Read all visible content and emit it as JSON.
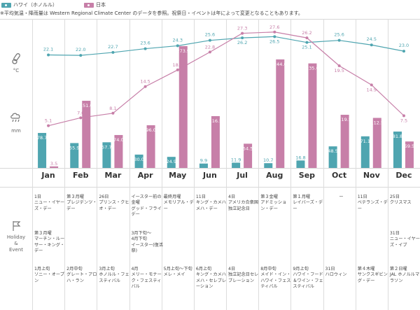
{
  "legend": {
    "hawaii": "ハワイ（ホノルル）",
    "japan": "日本"
  },
  "note": "※平均気温・降雨量は Western Regional Climate Center のデータを参照。祝祭日・イベントは年によって変更となることもあります。",
  "row_labels": {
    "temp_unit": "°C",
    "rain_unit": "mm",
    "holiday": "Holiday",
    "and": "&",
    "event": "Event"
  },
  "colors": {
    "hawaii": "#4fa5b0",
    "japan": "#c77fa8",
    "grid": "#dcdcdc"
  },
  "chart_data": [
    {
      "type": "line",
      "title": "",
      "unit": "°C",
      "categories": [
        "Jan",
        "Feb",
        "Mar",
        "Apr",
        "May",
        "Jun",
        "Jul",
        "Aug",
        "Sep",
        "Oct",
        "Nov",
        "Dec"
      ],
      "series": [
        {
          "name": "ハワイ（ホノルル）",
          "color": "#4fa5b0",
          "values": [
            22.1,
            22.0,
            22.7,
            23.6,
            24.3,
            25.6,
            26.2,
            26.5,
            25.1,
            25.6,
            24.5,
            23.0
          ]
        },
        {
          "name": "日本",
          "color": "#c77fa8",
          "values": [
            5.1,
            7.0,
            8.1,
            14.5,
            18.5,
            22.8,
            27.3,
            27.6,
            26.2,
            19.5,
            14.9,
            7.5
          ]
        }
      ]
    },
    {
      "type": "bar",
      "title": "",
      "unit": "mm",
      "categories": [
        "Jan",
        "Feb",
        "Mar",
        "Apr",
        "May",
        "Jun",
        "Jul",
        "Aug",
        "Sep",
        "Oct",
        "Nov",
        "Dec"
      ],
      "ylim": [
        0,
        280
      ],
      "series": [
        {
          "name": "ハワイ（ホノルル）",
          "color": "#4fa5b0",
          "values": [
            78.7,
            55.9,
            57.7,
            30.0,
            24.9,
            9.9,
            11.9,
            10.7,
            16.8,
            48.5,
            71.1,
            81.8
          ]
        },
        {
          "name": "日本",
          "color": "#c77fa8",
          "values": [
            3.5,
            151.0,
            74.0,
            96.0,
            273.9,
            116.5,
            54.5,
            244.0,
            235.0,
            119.5,
            112.5,
            59.5
          ]
        }
      ]
    }
  ],
  "months": [
    "Jan",
    "Feb",
    "Mar",
    "Apr",
    "May",
    "Jun",
    "Jul",
    "Aug",
    "Sep",
    "Oct",
    "Nov",
    "Dec"
  ],
  "events_a": [
    "1日\nニュー・イヤーズ・デー",
    "第３月曜\nプレジデンツ・デー",
    "26日\nプリンス・クヒオ・デー",
    "イースター前の金曜\nグッド・フライデー",
    "最終月曜\nメモリアル・デー",
    "11日\nキング・カメハメハ・デー",
    "4日\nアメリカ合衆国独立記念日",
    "第３金曜\nアドミッション・デー",
    "第１月曜\nレイバーズ・デー",
    "ー",
    "11日\nベテランズ・デー",
    "25日\nクリスマス"
  ],
  "events_b": [
    "第３月曜\nマーチン・ルーサー・キング・デー",
    "",
    "",
    "3月下旬〜\n4月下旬\nイースター(復活祭)",
    "",
    "",
    "",
    "",
    "",
    "",
    "",
    "31日\nニュー・イヤーズ・イブ"
  ],
  "events_c": [
    "1月上旬\nソニー・オープン",
    "2月中旬\nグレート・アロハ・ラン",
    "3月上旬\nホノルル・フェスティバル",
    "4月\nメリー・モナーク・フェスティバル",
    "5月上旬〜下旬\nメレ・メイ",
    "6月上旬\nキング・カメハメハ・セレブレーション",
    "4日\n独立記念日セレブレーション",
    "8月中旬\nメイド・イン・ハワイ・フェスティバル",
    "9月上旬\nハワイ・フード＆ワイン・フェスティバル",
    "31日\nハロウィン",
    "第４木曜\nサンクスギビング・デー",
    "第２日曜\nJAL ホノルルマラソン"
  ]
}
